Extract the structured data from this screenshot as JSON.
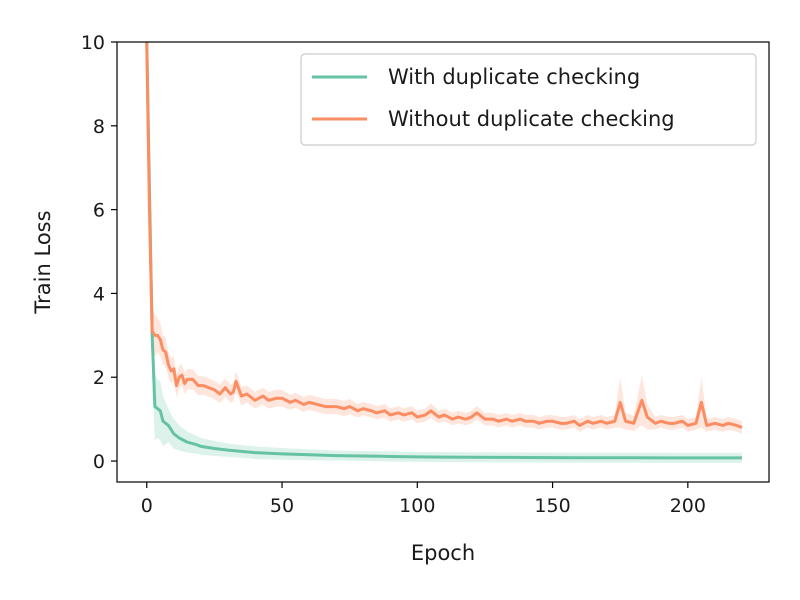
{
  "chart_data": {
    "type": "line",
    "title": "",
    "xlabel": "Epoch",
    "ylabel": "Train Loss",
    "xlim": [
      -11,
      230
    ],
    "ylim": [
      -0.5,
      10
    ],
    "xticks": [
      0,
      50,
      100,
      150,
      200
    ],
    "yticks": [
      0,
      2,
      4,
      6,
      8,
      10
    ],
    "grid": false,
    "legend_position": "top-right",
    "series": [
      {
        "name": "With duplicate checking",
        "color": "#66c2a5",
        "band_color": "#66c2a5",
        "x": [
          0,
          1,
          2,
          3,
          4,
          5,
          6,
          7,
          8,
          10,
          12,
          15,
          18,
          20,
          25,
          30,
          35,
          40,
          50,
          60,
          70,
          80,
          90,
          100,
          110,
          120,
          130,
          140,
          150,
          160,
          170,
          180,
          190,
          200,
          210,
          220
        ],
        "y": [
          10.0,
          6.5,
          3.0,
          1.3,
          1.25,
          1.2,
          0.95,
          0.9,
          0.85,
          0.65,
          0.55,
          0.45,
          0.4,
          0.35,
          0.3,
          0.26,
          0.23,
          0.2,
          0.17,
          0.15,
          0.13,
          0.12,
          0.11,
          0.1,
          0.095,
          0.09,
          0.088,
          0.085,
          0.083,
          0.08,
          0.08,
          0.078,
          0.077,
          0.076,
          0.075,
          0.075
        ],
        "band": [
          2.0,
          1.5,
          1.0,
          0.8,
          0.7,
          0.7,
          0.6,
          0.5,
          0.4,
          0.35,
          0.3,
          0.25,
          0.22,
          0.2,
          0.18,
          0.16,
          0.15,
          0.15,
          0.14,
          0.13,
          0.12,
          0.12,
          0.12,
          0.12,
          0.12,
          0.12,
          0.12,
          0.12,
          0.12,
          0.12,
          0.12,
          0.12,
          0.12,
          0.12,
          0.12,
          0.12
        ]
      },
      {
        "name": "Without duplicate checking",
        "color": "#fc8d62",
        "band_color": "#fc8d62",
        "x": [
          0,
          1,
          2,
          3,
          4,
          5,
          6,
          7,
          8,
          9,
          10,
          11,
          12,
          13,
          14,
          15,
          17,
          19,
          21,
          23,
          25,
          27,
          29,
          31,
          32,
          33,
          35,
          37,
          40,
          43,
          45,
          48,
          50,
          53,
          55,
          58,
          60,
          63,
          66,
          70,
          73,
          75,
          78,
          80,
          83,
          85,
          88,
          90,
          93,
          95,
          98,
          100,
          103,
          105,
          108,
          110,
          113,
          115,
          118,
          120,
          122,
          125,
          128,
          130,
          133,
          135,
          138,
          140,
          143,
          145,
          148,
          150,
          153,
          155,
          158,
          160,
          163,
          165,
          168,
          170,
          173,
          175,
          177,
          180,
          183,
          185,
          188,
          190,
          193,
          195,
          198,
          200,
          203,
          205,
          207,
          210,
          213,
          215,
          218,
          220
        ],
        "y": [
          10.0,
          6.0,
          3.1,
          3.0,
          3.0,
          2.9,
          2.65,
          2.6,
          2.3,
          2.15,
          2.2,
          1.8,
          2.0,
          2.05,
          1.85,
          1.95,
          1.95,
          1.8,
          1.8,
          1.75,
          1.7,
          1.6,
          1.75,
          1.6,
          1.65,
          1.9,
          1.55,
          1.6,
          1.45,
          1.55,
          1.45,
          1.5,
          1.5,
          1.4,
          1.45,
          1.35,
          1.4,
          1.35,
          1.3,
          1.3,
          1.25,
          1.3,
          1.2,
          1.25,
          1.2,
          1.15,
          1.2,
          1.1,
          1.15,
          1.1,
          1.15,
          1.05,
          1.1,
          1.2,
          1.05,
          1.1,
          1.0,
          1.05,
          1.0,
          1.05,
          1.15,
          1.0,
          1.0,
          0.95,
          1.0,
          0.95,
          1.0,
          0.95,
          0.95,
          0.9,
          0.95,
          0.95,
          0.9,
          0.9,
          0.95,
          0.85,
          0.95,
          0.9,
          0.95,
          0.9,
          0.95,
          1.4,
          0.95,
          0.9,
          1.45,
          1.05,
          0.9,
          0.95,
          0.9,
          0.9,
          0.95,
          0.85,
          0.9,
          1.4,
          0.85,
          0.9,
          0.85,
          0.9,
          0.85,
          0.8
        ],
        "band": [
          2.0,
          1.5,
          0.6,
          0.5,
          0.4,
          0.4,
          0.35,
          0.35,
          0.3,
          0.3,
          0.3,
          0.28,
          0.28,
          0.26,
          0.25,
          0.25,
          0.24,
          0.23,
          0.22,
          0.22,
          0.22,
          0.22,
          0.22,
          0.22,
          0.22,
          0.24,
          0.22,
          0.2,
          0.2,
          0.2,
          0.2,
          0.2,
          0.2,
          0.18,
          0.18,
          0.18,
          0.18,
          0.18,
          0.18,
          0.18,
          0.18,
          0.18,
          0.16,
          0.16,
          0.16,
          0.16,
          0.16,
          0.16,
          0.16,
          0.16,
          0.16,
          0.15,
          0.15,
          0.18,
          0.15,
          0.15,
          0.15,
          0.15,
          0.15,
          0.15,
          0.16,
          0.15,
          0.15,
          0.15,
          0.15,
          0.15,
          0.15,
          0.15,
          0.15,
          0.15,
          0.15,
          0.15,
          0.15,
          0.15,
          0.15,
          0.15,
          0.15,
          0.15,
          0.15,
          0.15,
          0.15,
          0.6,
          0.2,
          0.18,
          0.6,
          0.3,
          0.15,
          0.15,
          0.15,
          0.15,
          0.15,
          0.15,
          0.15,
          0.6,
          0.15,
          0.15,
          0.15,
          0.15,
          0.15,
          0.15
        ]
      }
    ]
  }
}
